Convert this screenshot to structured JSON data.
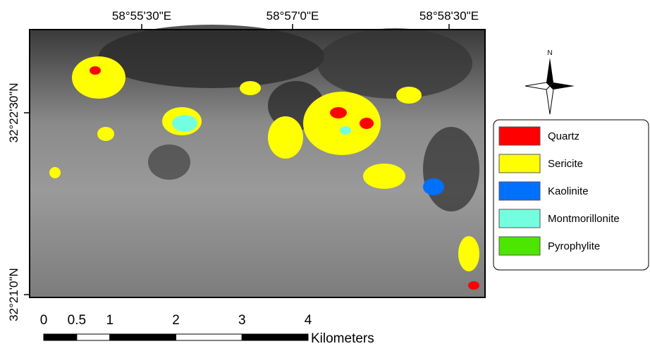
{
  "map": {
    "x_labels": [
      "58°55'30\"E",
      "58°57'0\"E",
      "58°58'30\"E"
    ],
    "y_labels": [
      "32°22'30\"N",
      "32°21'0\"N"
    ],
    "north": "N",
    "legend": [
      {
        "label": "Quartz",
        "color": "#ff0000"
      },
      {
        "label": "Sericite",
        "color": "#ffff00"
      },
      {
        "label": "Kaolinite",
        "color": "#0070ff"
      },
      {
        "label": "Montmorillonite",
        "color": "#73ffdf"
      },
      {
        "label": "Pyrophylite",
        "color": "#4ce600"
      }
    ],
    "scale": {
      "ticks": [
        0,
        0.5,
        1,
        2,
        3,
        4
      ],
      "unit": "Kilometers"
    }
  }
}
